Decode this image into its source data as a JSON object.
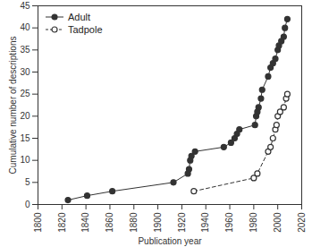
{
  "chart_data": {
    "type": "line",
    "x_label": "Publication year",
    "y_label": "Cumulative number of descriptions",
    "xlim": [
      1800,
      2020
    ],
    "xticks": [
      1800,
      1820,
      1840,
      1860,
      1880,
      1900,
      1920,
      1940,
      1960,
      1980,
      2000,
      2020
    ],
    "ylim": [
      0,
      45
    ],
    "yticks": [
      0,
      5,
      10,
      15,
      20,
      25,
      30,
      35,
      40,
      45
    ],
    "legend": "top-left",
    "series": [
      {
        "name": "Adult",
        "color": "#333333",
        "marker": "circle",
        "line_style": "solid",
        "x": [
          1825,
          1841,
          1862,
          1913,
          1925,
          1926,
          1927,
          1928,
          1931,
          1955,
          1961,
          1964,
          1966,
          1968,
          1981,
          1982,
          1983,
          1984,
          1986,
          1987,
          1992,
          1994,
          1996,
          1998,
          2000,
          2001,
          2003,
          2005,
          2006,
          2008
        ],
        "values": [
          1,
          2,
          3,
          5,
          7,
          8,
          10,
          11,
          12,
          13,
          14,
          15,
          16,
          17,
          18,
          20,
          21,
          22,
          24,
          26,
          29,
          31,
          32,
          33,
          35,
          36,
          37,
          38,
          40,
          42
        ]
      },
      {
        "name": "Tadpole",
        "color": "#333333",
        "marker": "circle-open",
        "line_style": "dashed",
        "x": [
          1930,
          1980,
          1983,
          1992,
          1994,
          1996,
          1998,
          1999,
          2000,
          2002,
          2005,
          2007,
          2008
        ],
        "values": [
          3,
          6,
          7,
          12,
          13,
          15,
          17,
          18,
          20,
          21,
          22,
          24,
          25
        ]
      }
    ]
  }
}
